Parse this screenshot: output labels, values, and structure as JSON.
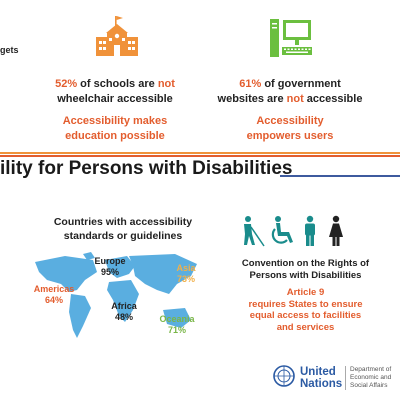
{
  "left_fragment": "gets",
  "stats": [
    {
      "pct": "52%",
      "pre": " of schools are ",
      "neg": "not",
      "post": "wheelchair accessible",
      "slogan1": "Accessibility makes",
      "slogan2": "education possible"
    },
    {
      "pct": "61%",
      "pre": " of government",
      "line2_pre": "websites are ",
      "neg": "not",
      "post": " accessible",
      "slogan1": "Accessibility",
      "slogan2": "empowers users"
    }
  ],
  "banner_title": "ility for Persons with Disabilities",
  "map": {
    "heading_line1": "Countries with accessibility",
    "heading_line2": "standards or guidelines",
    "regions": [
      {
        "name": "Europe",
        "value": "95%",
        "color": "#222222"
      },
      {
        "name": "Asia",
        "value": "73%",
        "color": "#f0b04a"
      },
      {
        "name": "Americas",
        "value": "64%",
        "color": "#e35d2e"
      },
      {
        "name": "Africa",
        "value": "48%",
        "color": "#222222"
      },
      {
        "name": "Oceania",
        "value": "71%",
        "color": "#7ab648"
      }
    ]
  },
  "convention": {
    "line1": "Convention on the Rights of",
    "line2": "Persons with Disabilities",
    "article_lines": [
      "Article 9",
      "requires States to ensure",
      "equal access to facilities",
      "and services"
    ]
  },
  "icons": [
    "blind-person-icon",
    "wheelchair-icon",
    "man-icon",
    "woman-icon"
  ],
  "footer": {
    "org_line1": "United",
    "org_line2": "Nations",
    "dept_lines": [
      "Department of",
      "Economic and",
      "Social Affairs"
    ]
  },
  "colors": {
    "orange": "#f0923a",
    "green": "#6bbf3f",
    "red": "#e35d2e",
    "blue": "#3d5a9e",
    "teal": "#1a8c8c",
    "map_blue": "#5aaee0"
  }
}
